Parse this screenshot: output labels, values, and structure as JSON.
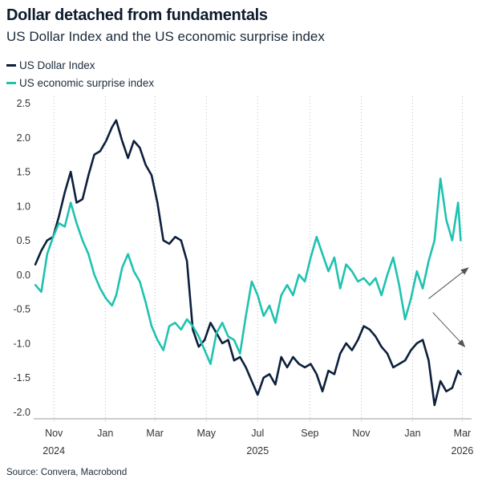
{
  "header": {
    "title": "Dollar detached from fundamentals",
    "subtitle": "US Dollar Index and the US economic surprise index"
  },
  "footer": {
    "source": "Source: Convera, Macrobond"
  },
  "chart_data": {
    "type": "line",
    "title": "Dollar detached from fundamentals",
    "subtitle": "US Dollar Index and the US economic surprise index",
    "legend_position": "top-left",
    "grid": {
      "horizontal": false,
      "vertical": "dotted at month ticks"
    },
    "ylim": [
      -2.1,
      2.6
    ],
    "y_ticks": [
      2.5,
      2.0,
      1.5,
      1.0,
      0.5,
      0.0,
      -0.5,
      -1.0,
      -1.5,
      -2.0
    ],
    "y_tick_labels": [
      "2.5",
      "2.0",
      "1.5",
      "1.0",
      "0.5",
      "0.0",
      "-0.5",
      "-1.0",
      "-1.5",
      "-2.0"
    ],
    "xlim": [
      "2024-10-08",
      "2026-03-12"
    ],
    "x_ticks": [
      {
        "date": "2024-11-01",
        "label": "Nov",
        "year": "2024"
      },
      {
        "date": "2025-01-01",
        "label": "Jan",
        "year": ""
      },
      {
        "date": "2025-03-01",
        "label": "Mar",
        "year": ""
      },
      {
        "date": "2025-05-01",
        "label": "May",
        "year": ""
      },
      {
        "date": "2025-07-01",
        "label": "Jul",
        "year": "2025"
      },
      {
        "date": "2025-09-01",
        "label": "Sep",
        "year": ""
      },
      {
        "date": "2025-11-01",
        "label": "Nov",
        "year": ""
      },
      {
        "date": "2026-01-01",
        "label": "Jan",
        "year": ""
      },
      {
        "date": "2026-03-01",
        "label": "Mar",
        "year": "2026"
      }
    ],
    "series": [
      {
        "name": "US Dollar Index",
        "color": "#0d1f3c",
        "points": [
          [
            "2024-10-10",
            0.15
          ],
          [
            "2024-10-17",
            0.35
          ],
          [
            "2024-10-24",
            0.5
          ],
          [
            "2024-10-31",
            0.55
          ],
          [
            "2024-11-07",
            0.85
          ],
          [
            "2024-11-14",
            1.2
          ],
          [
            "2024-11-21",
            1.5
          ],
          [
            "2024-11-28",
            1.05
          ],
          [
            "2024-12-05",
            1.1
          ],
          [
            "2024-12-12",
            1.45
          ],
          [
            "2024-12-19",
            1.75
          ],
          [
            "2024-12-26",
            1.8
          ],
          [
            "2025-01-02",
            1.95
          ],
          [
            "2025-01-09",
            2.15
          ],
          [
            "2025-01-14",
            2.25
          ],
          [
            "2025-01-21",
            1.95
          ],
          [
            "2025-01-28",
            1.7
          ],
          [
            "2025-02-04",
            1.95
          ],
          [
            "2025-02-11",
            1.85
          ],
          [
            "2025-02-18",
            1.6
          ],
          [
            "2025-02-25",
            1.45
          ],
          [
            "2025-03-04",
            1.05
          ],
          [
            "2025-03-11",
            0.5
          ],
          [
            "2025-03-18",
            0.45
          ],
          [
            "2025-03-25",
            0.55
          ],
          [
            "2025-04-01",
            0.5
          ],
          [
            "2025-04-08",
            0.2
          ],
          [
            "2025-04-15",
            -0.8
          ],
          [
            "2025-04-22",
            -1.05
          ],
          [
            "2025-04-29",
            -0.95
          ],
          [
            "2025-05-06",
            -0.7
          ],
          [
            "2025-05-13",
            -0.85
          ],
          [
            "2025-05-20",
            -1.0
          ],
          [
            "2025-05-27",
            -0.95
          ],
          [
            "2025-06-03",
            -1.25
          ],
          [
            "2025-06-10",
            -1.2
          ],
          [
            "2025-06-17",
            -1.35
          ],
          [
            "2025-06-24",
            -1.55
          ],
          [
            "2025-07-01",
            -1.75
          ],
          [
            "2025-07-08",
            -1.5
          ],
          [
            "2025-07-15",
            -1.45
          ],
          [
            "2025-07-22",
            -1.6
          ],
          [
            "2025-07-29",
            -1.2
          ],
          [
            "2025-08-05",
            -1.35
          ],
          [
            "2025-08-12",
            -1.2
          ],
          [
            "2025-08-19",
            -1.3
          ],
          [
            "2025-08-26",
            -1.35
          ],
          [
            "2025-09-02",
            -1.3
          ],
          [
            "2025-09-09",
            -1.45
          ],
          [
            "2025-09-16",
            -1.7
          ],
          [
            "2025-09-23",
            -1.4
          ],
          [
            "2025-09-30",
            -1.45
          ],
          [
            "2025-10-07",
            -1.15
          ],
          [
            "2025-10-14",
            -1.0
          ],
          [
            "2025-10-21",
            -1.1
          ],
          [
            "2025-10-28",
            -0.95
          ],
          [
            "2025-11-04",
            -0.75
          ],
          [
            "2025-11-11",
            -0.8
          ],
          [
            "2025-11-18",
            -0.9
          ],
          [
            "2025-11-25",
            -1.05
          ],
          [
            "2025-12-02",
            -1.15
          ],
          [
            "2025-12-09",
            -1.35
          ],
          [
            "2025-12-16",
            -1.3
          ],
          [
            "2025-12-23",
            -1.25
          ],
          [
            "2025-12-30",
            -1.1
          ],
          [
            "2026-01-06",
            -1.0
          ],
          [
            "2026-01-13",
            -0.95
          ],
          [
            "2026-01-20",
            -1.25
          ],
          [
            "2026-01-27",
            -1.9
          ],
          [
            "2026-02-03",
            -1.55
          ],
          [
            "2026-02-10",
            -1.7
          ],
          [
            "2026-02-17",
            -1.65
          ],
          [
            "2026-02-24",
            -1.4
          ],
          [
            "2026-02-27",
            -1.45
          ]
        ]
      },
      {
        "name": "US economic surprise index",
        "color": "#1fc2b0",
        "points": [
          [
            "2024-10-10",
            -0.15
          ],
          [
            "2024-10-17",
            -0.25
          ],
          [
            "2024-10-24",
            0.3
          ],
          [
            "2024-10-31",
            0.55
          ],
          [
            "2024-11-07",
            0.75
          ],
          [
            "2024-11-14",
            0.7
          ],
          [
            "2024-11-21",
            1.05
          ],
          [
            "2024-11-28",
            0.75
          ],
          [
            "2024-12-05",
            0.5
          ],
          [
            "2024-12-12",
            0.3
          ],
          [
            "2024-12-19",
            0.0
          ],
          [
            "2024-12-26",
            -0.2
          ],
          [
            "2025-01-02",
            -0.35
          ],
          [
            "2025-01-09",
            -0.45
          ],
          [
            "2025-01-14",
            -0.3
          ],
          [
            "2025-01-21",
            0.1
          ],
          [
            "2025-01-28",
            0.3
          ],
          [
            "2025-02-04",
            0.05
          ],
          [
            "2025-02-11",
            -0.1
          ],
          [
            "2025-02-18",
            -0.4
          ],
          [
            "2025-02-25",
            -0.75
          ],
          [
            "2025-03-04",
            -0.95
          ],
          [
            "2025-03-11",
            -1.1
          ],
          [
            "2025-03-18",
            -0.75
          ],
          [
            "2025-03-25",
            -0.7
          ],
          [
            "2025-04-01",
            -0.8
          ],
          [
            "2025-04-08",
            -0.65
          ],
          [
            "2025-04-15",
            -0.75
          ],
          [
            "2025-04-22",
            -0.9
          ],
          [
            "2025-04-29",
            -1.1
          ],
          [
            "2025-05-06",
            -1.3
          ],
          [
            "2025-05-13",
            -0.85
          ],
          [
            "2025-05-20",
            -0.7
          ],
          [
            "2025-05-27",
            -0.9
          ],
          [
            "2025-06-03",
            -0.95
          ],
          [
            "2025-06-10",
            -1.15
          ],
          [
            "2025-06-17",
            -0.6
          ],
          [
            "2025-06-24",
            -0.1
          ],
          [
            "2025-07-01",
            -0.3
          ],
          [
            "2025-07-08",
            -0.6
          ],
          [
            "2025-07-15",
            -0.45
          ],
          [
            "2025-07-22",
            -0.7
          ],
          [
            "2025-07-29",
            -0.3
          ],
          [
            "2025-08-05",
            -0.15
          ],
          [
            "2025-08-12",
            -0.3
          ],
          [
            "2025-08-19",
            0.0
          ],
          [
            "2025-08-26",
            -0.1
          ],
          [
            "2025-09-02",
            0.25
          ],
          [
            "2025-09-09",
            0.55
          ],
          [
            "2025-09-16",
            0.3
          ],
          [
            "2025-09-23",
            0.05
          ],
          [
            "2025-09-30",
            0.25
          ],
          [
            "2025-10-07",
            -0.2
          ],
          [
            "2025-10-14",
            0.15
          ],
          [
            "2025-10-21",
            0.05
          ],
          [
            "2025-10-28",
            -0.1
          ],
          [
            "2025-11-04",
            -0.05
          ],
          [
            "2025-11-11",
            -0.15
          ],
          [
            "2025-11-18",
            -0.05
          ],
          [
            "2025-11-25",
            -0.3
          ],
          [
            "2025-12-02",
            0.0
          ],
          [
            "2025-12-09",
            0.25
          ],
          [
            "2025-12-16",
            -0.15
          ],
          [
            "2025-12-23",
            -0.65
          ],
          [
            "2025-12-30",
            -0.35
          ],
          [
            "2026-01-06",
            0.05
          ],
          [
            "2026-01-13",
            -0.2
          ],
          [
            "2026-01-20",
            0.2
          ],
          [
            "2026-01-27",
            0.5
          ],
          [
            "2026-02-03",
            1.4
          ],
          [
            "2026-02-10",
            0.8
          ],
          [
            "2026-02-17",
            0.5
          ],
          [
            "2026-02-24",
            1.05
          ],
          [
            "2026-02-27",
            0.5
          ]
        ]
      }
    ],
    "annotations": [
      {
        "type": "arrow",
        "direction": "up",
        "from": [
          "2026-01-20",
          -0.35
        ],
        "to": [
          "2026-03-08",
          0.1
        ]
      },
      {
        "type": "arrow",
        "direction": "down",
        "from": [
          "2026-01-25",
          -0.55
        ],
        "to": [
          "2026-03-04",
          -1.05
        ]
      }
    ]
  }
}
